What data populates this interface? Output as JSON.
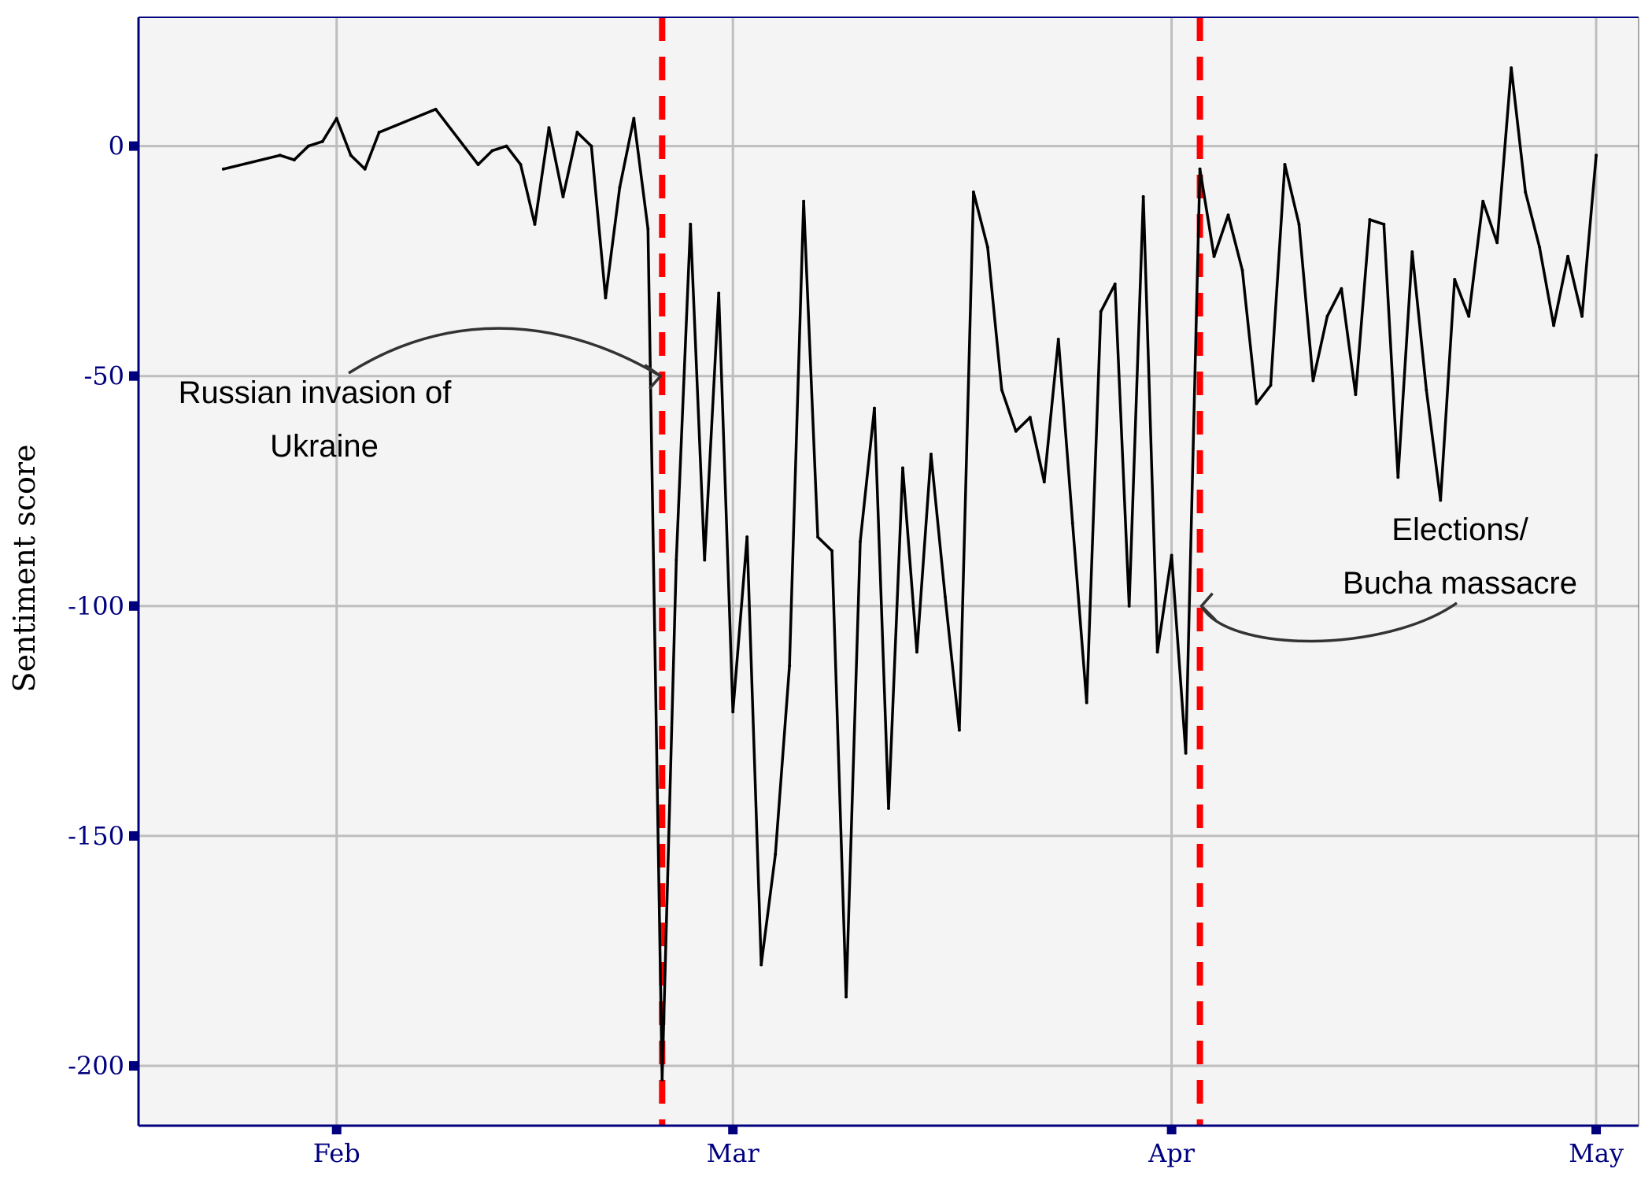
{
  "chart_data": {
    "type": "line",
    "title": "",
    "xlabel": "",
    "ylabel": "Sentiment score",
    "xlim": [
      "2022-01-18",
      "2022-05-04"
    ],
    "ylim": [
      -213,
      28
    ],
    "grid": true,
    "legend": "none",
    "x_ticks": [
      {
        "date": "2022-02-01",
        "label": "Feb"
      },
      {
        "date": "2022-03-01",
        "label": "Mar"
      },
      {
        "date": "2022-04-01",
        "label": "Apr"
      },
      {
        "date": "2022-05-01",
        "label": "May"
      }
    ],
    "y_ticks": [
      {
        "value": 0,
        "label": "0"
      },
      {
        "value": -50,
        "label": "-50"
      },
      {
        "value": -100,
        "label": "-100"
      },
      {
        "value": -150,
        "label": "-150"
      },
      {
        "value": -200,
        "label": "-200"
      }
    ],
    "series": [
      {
        "color": "#000000",
        "x": [
          "2022-01-24",
          "2022-01-28",
          "2022-01-29",
          "2022-01-30",
          "2022-01-31",
          "2022-02-01",
          "2022-02-02",
          "2022-02-03",
          "2022-02-04",
          "2022-02-08",
          "2022-02-11",
          "2022-02-12",
          "2022-02-13",
          "2022-02-14",
          "2022-02-15",
          "2022-02-16",
          "2022-02-17",
          "2022-02-18",
          "2022-02-19",
          "2022-02-20",
          "2022-02-21",
          "2022-02-22",
          "2022-02-23",
          "2022-02-24",
          "2022-02-25",
          "2022-02-26",
          "2022-02-27",
          "2022-02-28",
          "2022-03-01",
          "2022-03-02",
          "2022-03-03",
          "2022-03-04",
          "2022-03-05",
          "2022-03-06",
          "2022-03-07",
          "2022-03-08",
          "2022-03-09",
          "2022-03-10",
          "2022-03-11",
          "2022-03-12",
          "2022-03-13",
          "2022-03-14",
          "2022-03-15",
          "2022-03-16",
          "2022-03-17",
          "2022-03-18",
          "2022-03-19",
          "2022-03-20",
          "2022-03-21",
          "2022-03-22",
          "2022-03-23",
          "2022-03-24",
          "2022-03-25",
          "2022-03-26",
          "2022-03-27",
          "2022-03-28",
          "2022-03-29",
          "2022-03-30",
          "2022-03-31",
          "2022-04-01",
          "2022-04-02",
          "2022-04-03",
          "2022-04-04",
          "2022-04-05",
          "2022-04-06",
          "2022-04-07",
          "2022-04-08",
          "2022-04-09",
          "2022-04-10",
          "2022-04-11",
          "2022-04-12",
          "2022-04-13",
          "2022-04-14",
          "2022-04-15",
          "2022-04-16",
          "2022-04-17",
          "2022-04-18",
          "2022-04-19",
          "2022-04-20",
          "2022-04-21",
          "2022-04-22",
          "2022-04-23",
          "2022-04-24",
          "2022-04-25",
          "2022-04-26",
          "2022-04-27",
          "2022-04-28",
          "2022-04-29",
          "2022-04-30",
          "2022-05-01"
        ],
        "values": [
          -5,
          -2,
          -3,
          0,
          1,
          6,
          -2,
          -5,
          3,
          8,
          -4,
          -1,
          0,
          -4,
          -17,
          4,
          -11,
          3,
          0,
          -33,
          -9,
          6,
          -18,
          -203,
          -90,
          -17,
          -90,
          -32,
          -123,
          -85,
          -178,
          -154,
          -113,
          -12,
          -85,
          -88,
          -185,
          -86,
          -57,
          -144,
          -70,
          -110,
          -67,
          -98,
          -127,
          -10,
          -22,
          -53,
          -62,
          -59,
          -73,
          -42,
          -82,
          -121,
          -36,
          -30,
          -100,
          -11,
          -110,
          -89,
          -132,
          -5,
          -24,
          -15,
          -27,
          -56,
          -52,
          -4,
          -17,
          -51,
          -37,
          -31,
          -54,
          -16,
          -17,
          -72,
          -23,
          -53,
          -77,
          -29,
          -37,
          -12,
          -21,
          17,
          -10,
          -22,
          -39,
          -24,
          -37,
          -2
        ]
      }
    ],
    "vlines": [
      {
        "date": "2022-02-24",
        "color": "#ff0000",
        "style": "dashed"
      },
      {
        "date": "2022-04-03",
        "color": "#ff0000",
        "style": "dashed"
      }
    ],
    "annotations": [
      {
        "lines": [
          "Russian invasion of",
          "Ukraine"
        ],
        "target_date": "2022-02-24",
        "target_value": -50
      },
      {
        "lines": [
          "Elections/",
          "Bucha massacre"
        ],
        "target_date": "2022-04-03",
        "target_value": -100
      }
    ],
    "colors": {
      "panel_background": "#f4f4f4",
      "grid": "#bebebe",
      "axis": "#00007f",
      "tick_label": "#00007f",
      "annotation_arrow": "#333333"
    }
  }
}
